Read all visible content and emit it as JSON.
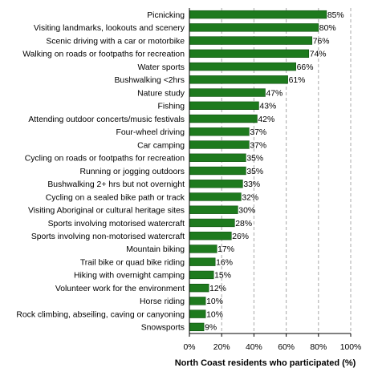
{
  "chart_data": {
    "type": "bar",
    "orientation": "horizontal",
    "categories": [
      "Picnicking",
      "Visiting landmarks, lookouts and scenery",
      "Scenic driving with a car or motorbike",
      "Walking on roads or footpaths for recreation",
      "Water sports",
      "Bushwalking <2hrs",
      "Nature study",
      "Fishing",
      "Attending outdoor concerts/music festivals",
      "Four-wheel driving",
      "Car camping",
      "Cycling on roads or footpaths for recreation",
      "Running or jogging outdoors",
      "Bushwalking 2+ hrs but not overnight",
      "Cycling on a sealed bike path or track",
      "Visiting Aboriginal or cultural heritage sites",
      "Sports involving motorised watercraft",
      "Sports involving non-motorised watercraft",
      "Mountain biking",
      "Trail bike or quad bike riding",
      "Hiking with overnight camping",
      "Volunteer work for the environment",
      "Horse riding",
      "Rock climbing, abseiling, caving or canyoning",
      "Snowsports"
    ],
    "values": [
      85,
      80,
      76,
      74,
      66,
      61,
      47,
      43,
      42,
      37,
      37,
      35,
      35,
      33,
      32,
      30,
      28,
      26,
      17,
      16,
      15,
      12,
      10,
      10,
      9
    ],
    "value_labels": [
      "85%",
      "80%",
      "76%",
      "74%",
      "66%",
      "61%",
      "47%",
      "43%",
      "42%",
      "37%",
      "37%",
      "35%",
      "35%",
      "33%",
      "32%",
      "30%",
      "28%",
      "26%",
      "17%",
      "16%",
      "15%",
      "12%",
      "10%",
      "10%",
      "9%"
    ],
    "xlabel": "North Coast residents who participated (%)",
    "ylabel": "",
    "xlim": [
      0,
      100
    ],
    "x_ticks": [
      0,
      20,
      40,
      60,
      80,
      100
    ],
    "x_tick_labels": [
      "0%",
      "20%",
      "40%",
      "60%",
      "80%",
      "100%"
    ],
    "grid": "vertical dashed",
    "legend": "none",
    "colors": {
      "bar": "#1e7a1e",
      "bar_edge": "#0d4d0d",
      "grid": "#a8a8a8",
      "axis": "#000000"
    }
  }
}
